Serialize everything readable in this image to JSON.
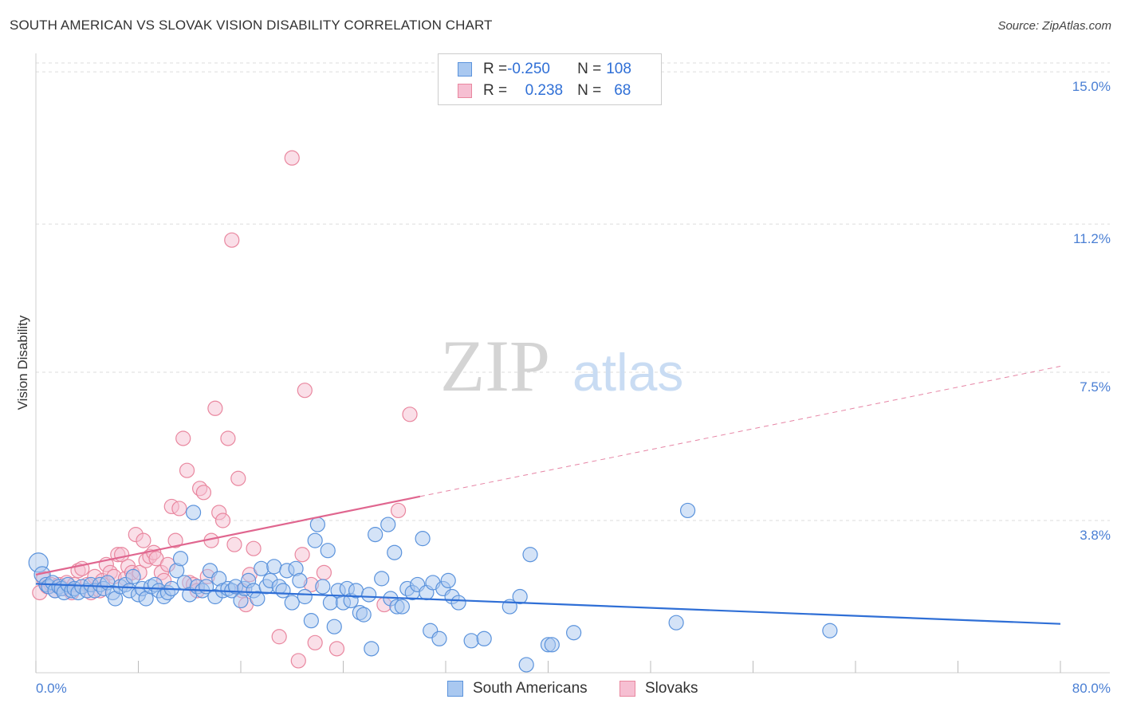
{
  "title": "SOUTH AMERICAN VS SLOVAK VISION DISABILITY CORRELATION CHART",
  "source": "Source: ZipAtlas.com",
  "watermark": {
    "zip": "ZIP",
    "atlas": "atlas"
  },
  "legend": {
    "rows": [
      {
        "r_label": "R = ",
        "r_value": "-0.250",
        "n_label": "N = ",
        "n_value": "108"
      },
      {
        "r_label": "R = ",
        "r_value": "0.238",
        "n_label": "N = ",
        "n_value": "68"
      }
    ]
  },
  "colors": {
    "blue_fill": "#a9c8f0",
    "blue_stroke": "#5b93dc",
    "blue_line": "#2f6fd6",
    "pink_fill": "#f6bfd2",
    "pink_stroke": "#e9879f",
    "pink_line": "#e0668f",
    "grid": "#dddddd",
    "tick_text": "#4a7fd4"
  },
  "chart_data": {
    "type": "scatter",
    "title": "SOUTH AMERICAN VS SLOVAK VISION DISABILITY CORRELATION CHART",
    "xlabel": "",
    "ylabel": "Vision Disability",
    "xlim": [
      0,
      80
    ],
    "ylim": [
      0,
      15.4
    ],
    "x_tick_labels": [
      "0.0%",
      "80.0%"
    ],
    "y_ticks": [
      3.8,
      7.5,
      11.2,
      15.0
    ],
    "y_tick_labels": [
      "3.8%",
      "7.5%",
      "11.2%",
      "15.0%"
    ],
    "grid": true,
    "legend_position": "bottom-center",
    "series": [
      {
        "name": "South Americans",
        "r": -0.25,
        "n": 108,
        "trend": {
          "x": [
            0,
            80
          ],
          "y": [
            2.22,
            1.22
          ],
          "style": "solid"
        },
        "points": [
          [
            0.2,
            2.75,
            12
          ],
          [
            0.5,
            2.45,
            10
          ],
          [
            0.8,
            2.2,
            9
          ],
          [
            1.0,
            2.15,
            9
          ],
          [
            1.3,
            2.25,
            9
          ],
          [
            1.5,
            2.05,
            9
          ],
          [
            1.8,
            2.15,
            9
          ],
          [
            2.0,
            2.1,
            9
          ],
          [
            2.2,
            2.0,
            9
          ],
          [
            2.5,
            2.2,
            9
          ],
          [
            2.8,
            2.05,
            9
          ],
          [
            3.0,
            2.1,
            9
          ],
          [
            3.3,
            2.0,
            9
          ],
          [
            3.6,
            2.15,
            9
          ],
          [
            4.0,
            2.05,
            9
          ],
          [
            4.3,
            2.2,
            9
          ],
          [
            4.6,
            2.05,
            9
          ],
          [
            5.0,
            2.2,
            9
          ],
          [
            5.3,
            2.1,
            9
          ],
          [
            5.6,
            2.25,
            9
          ],
          [
            6.0,
            2.0,
            9
          ],
          [
            6.2,
            1.85,
            9
          ],
          [
            6.6,
            2.15,
            9
          ],
          [
            7.0,
            2.2,
            9
          ],
          [
            7.3,
            2.05,
            9
          ],
          [
            7.6,
            2.4,
            9
          ],
          [
            8.0,
            1.95,
            9
          ],
          [
            8.3,
            2.1,
            9
          ],
          [
            8.6,
            1.85,
            9
          ],
          [
            9.0,
            2.15,
            9
          ],
          [
            9.3,
            2.2,
            9
          ],
          [
            9.6,
            2.05,
            9
          ],
          [
            10.0,
            1.9,
            9
          ],
          [
            10.3,
            2.0,
            9
          ],
          [
            10.6,
            2.1,
            9
          ],
          [
            11.0,
            2.55,
            9
          ],
          [
            11.3,
            2.85,
            9
          ],
          [
            11.6,
            2.25,
            9
          ],
          [
            12.0,
            1.95,
            9
          ],
          [
            12.3,
            4.0,
            9
          ],
          [
            12.6,
            2.15,
            9
          ],
          [
            13.0,
            2.05,
            9
          ],
          [
            13.3,
            2.15,
            9
          ],
          [
            13.6,
            2.55,
            9
          ],
          [
            14.0,
            1.9,
            9
          ],
          [
            14.3,
            2.35,
            9
          ],
          [
            14.6,
            2.05,
            9
          ],
          [
            15.0,
            2.1,
            9
          ],
          [
            15.3,
            2.05,
            9
          ],
          [
            15.6,
            2.15,
            9
          ],
          [
            16.0,
            1.8,
            9
          ],
          [
            16.3,
            2.1,
            9
          ],
          [
            16.6,
            2.3,
            9
          ],
          [
            17.0,
            2.05,
            9
          ],
          [
            17.3,
            1.85,
            9
          ],
          [
            17.6,
            2.6,
            9
          ],
          [
            18.0,
            2.15,
            9
          ],
          [
            18.3,
            2.3,
            9
          ],
          [
            18.6,
            2.65,
            9
          ],
          [
            19.0,
            2.15,
            9
          ],
          [
            19.3,
            2.05,
            9
          ],
          [
            19.6,
            2.55,
            9
          ],
          [
            20.0,
            1.75,
            9
          ],
          [
            20.3,
            2.6,
            9
          ],
          [
            20.6,
            2.3,
            9
          ],
          [
            21.0,
            1.9,
            9
          ],
          [
            21.5,
            1.3,
            9
          ],
          [
            21.8,
            3.3,
            9
          ],
          [
            22.0,
            3.7,
            9
          ],
          [
            22.4,
            2.15,
            9
          ],
          [
            22.8,
            3.05,
            9
          ],
          [
            23.0,
            1.75,
            9
          ],
          [
            23.3,
            1.15,
            9
          ],
          [
            23.6,
            2.05,
            9
          ],
          [
            24.0,
            1.75,
            9
          ],
          [
            24.3,
            2.1,
            9
          ],
          [
            24.6,
            1.8,
            9
          ],
          [
            25.0,
            2.05,
            9
          ],
          [
            25.3,
            1.5,
            9
          ],
          [
            25.6,
            1.45,
            9
          ],
          [
            26.0,
            1.95,
            9
          ],
          [
            26.2,
            0.6,
            9
          ],
          [
            26.5,
            3.45,
            9
          ],
          [
            27.0,
            2.35,
            9
          ],
          [
            27.5,
            3.7,
            9
          ],
          [
            27.7,
            1.85,
            9
          ],
          [
            28.0,
            3.0,
            9
          ],
          [
            28.2,
            1.65,
            9
          ],
          [
            28.6,
            1.65,
            9
          ],
          [
            29.0,
            2.1,
            9
          ],
          [
            29.4,
            2.0,
            9
          ],
          [
            29.8,
            2.2,
            9
          ],
          [
            30.2,
            3.35,
            9
          ],
          [
            30.5,
            2.0,
            9
          ],
          [
            30.8,
            1.05,
            9
          ],
          [
            31.0,
            2.25,
            9
          ],
          [
            31.5,
            0.85,
            9
          ],
          [
            31.8,
            2.1,
            9
          ],
          [
            32.2,
            2.3,
            9
          ],
          [
            32.5,
            1.9,
            9
          ],
          [
            33.0,
            1.75,
            9
          ],
          [
            34.0,
            0.8,
            9
          ],
          [
            35.0,
            0.85,
            9
          ],
          [
            37.0,
            1.65,
            9
          ],
          [
            37.8,
            1.9,
            9
          ],
          [
            38.3,
            0.2,
            9
          ],
          [
            38.6,
            2.95,
            9
          ],
          [
            40.0,
            0.7,
            9
          ],
          [
            40.3,
            0.7,
            9
          ],
          [
            42.0,
            1.0,
            9
          ],
          [
            50.0,
            1.25,
            9
          ],
          [
            50.9,
            4.05,
            9
          ],
          [
            62.0,
            1.05,
            9
          ]
        ]
      },
      {
        "name": "Slovaks",
        "r": 0.238,
        "n": 68,
        "trend": {
          "x": [
            0,
            30
          ],
          "y": [
            2.45,
            4.4
          ],
          "style": "solid",
          "extended": {
            "x": [
              30,
              80
            ],
            "y": [
              4.4,
              7.65
            ],
            "style": "dashed"
          }
        },
        "points": [
          [
            0.3,
            2.0,
            9
          ],
          [
            0.6,
            2.35,
            9
          ],
          [
            0.9,
            2.15,
            9
          ],
          [
            1.2,
            2.2,
            9
          ],
          [
            1.5,
            2.05,
            9
          ],
          [
            1.8,
            2.2,
            9
          ],
          [
            2.1,
            2.1,
            9
          ],
          [
            2.4,
            2.25,
            9
          ],
          [
            2.8,
            2.0,
            9
          ],
          [
            3.0,
            2.2,
            9
          ],
          [
            3.3,
            2.55,
            9
          ],
          [
            3.6,
            2.6,
            9
          ],
          [
            4.0,
            2.2,
            9
          ],
          [
            4.3,
            2.0,
            9
          ],
          [
            4.6,
            2.4,
            9
          ],
          [
            5.0,
            2.05,
            9
          ],
          [
            5.2,
            2.3,
            9
          ],
          [
            5.5,
            2.7,
            9
          ],
          [
            5.8,
            2.5,
            9
          ],
          [
            6.1,
            2.4,
            9
          ],
          [
            6.4,
            2.95,
            9
          ],
          [
            6.7,
            2.95,
            9
          ],
          [
            7.0,
            2.35,
            9
          ],
          [
            7.2,
            2.65,
            9
          ],
          [
            7.5,
            2.5,
            9
          ],
          [
            7.8,
            3.45,
            9
          ],
          [
            8.1,
            2.5,
            9
          ],
          [
            8.4,
            3.3,
            9
          ],
          [
            8.6,
            2.8,
            9
          ],
          [
            8.9,
            2.9,
            9
          ],
          [
            9.2,
            3.0,
            9
          ],
          [
            9.4,
            2.85,
            9
          ],
          [
            9.8,
            2.5,
            9
          ],
          [
            10.0,
            2.3,
            9
          ],
          [
            10.3,
            2.7,
            9
          ],
          [
            10.6,
            4.15,
            9
          ],
          [
            10.9,
            3.3,
            9
          ],
          [
            11.2,
            4.1,
            9
          ],
          [
            11.5,
            5.85,
            9
          ],
          [
            11.8,
            5.05,
            9
          ],
          [
            12.0,
            2.25,
            9
          ],
          [
            12.3,
            2.2,
            9
          ],
          [
            12.6,
            2.05,
            9
          ],
          [
            12.8,
            4.6,
            9
          ],
          [
            13.1,
            4.5,
            9
          ],
          [
            13.4,
            2.4,
            9
          ],
          [
            13.7,
            3.3,
            9
          ],
          [
            14.0,
            6.6,
            9
          ],
          [
            14.3,
            4.0,
            9
          ],
          [
            14.6,
            3.8,
            9
          ],
          [
            15.0,
            5.85,
            9
          ],
          [
            15.3,
            10.8,
            9
          ],
          [
            15.5,
            3.2,
            9
          ],
          [
            15.8,
            4.85,
            9
          ],
          [
            16.1,
            2.05,
            9
          ],
          [
            16.4,
            1.7,
            9
          ],
          [
            16.7,
            2.45,
            9
          ],
          [
            17.0,
            3.1,
            9
          ],
          [
            19.0,
            0.9,
            9
          ],
          [
            20.0,
            12.85,
            9
          ],
          [
            20.5,
            0.3,
            9
          ],
          [
            20.8,
            2.95,
            9
          ],
          [
            21.0,
            7.05,
            9
          ],
          [
            21.5,
            2.2,
            9
          ],
          [
            21.8,
            0.75,
            9
          ],
          [
            22.5,
            2.5,
            9
          ],
          [
            23.5,
            0.6,
            9
          ],
          [
            27.2,
            1.7,
            9
          ],
          [
            28.3,
            4.05,
            9
          ],
          [
            29.2,
            6.45,
            9
          ]
        ]
      }
    ]
  }
}
